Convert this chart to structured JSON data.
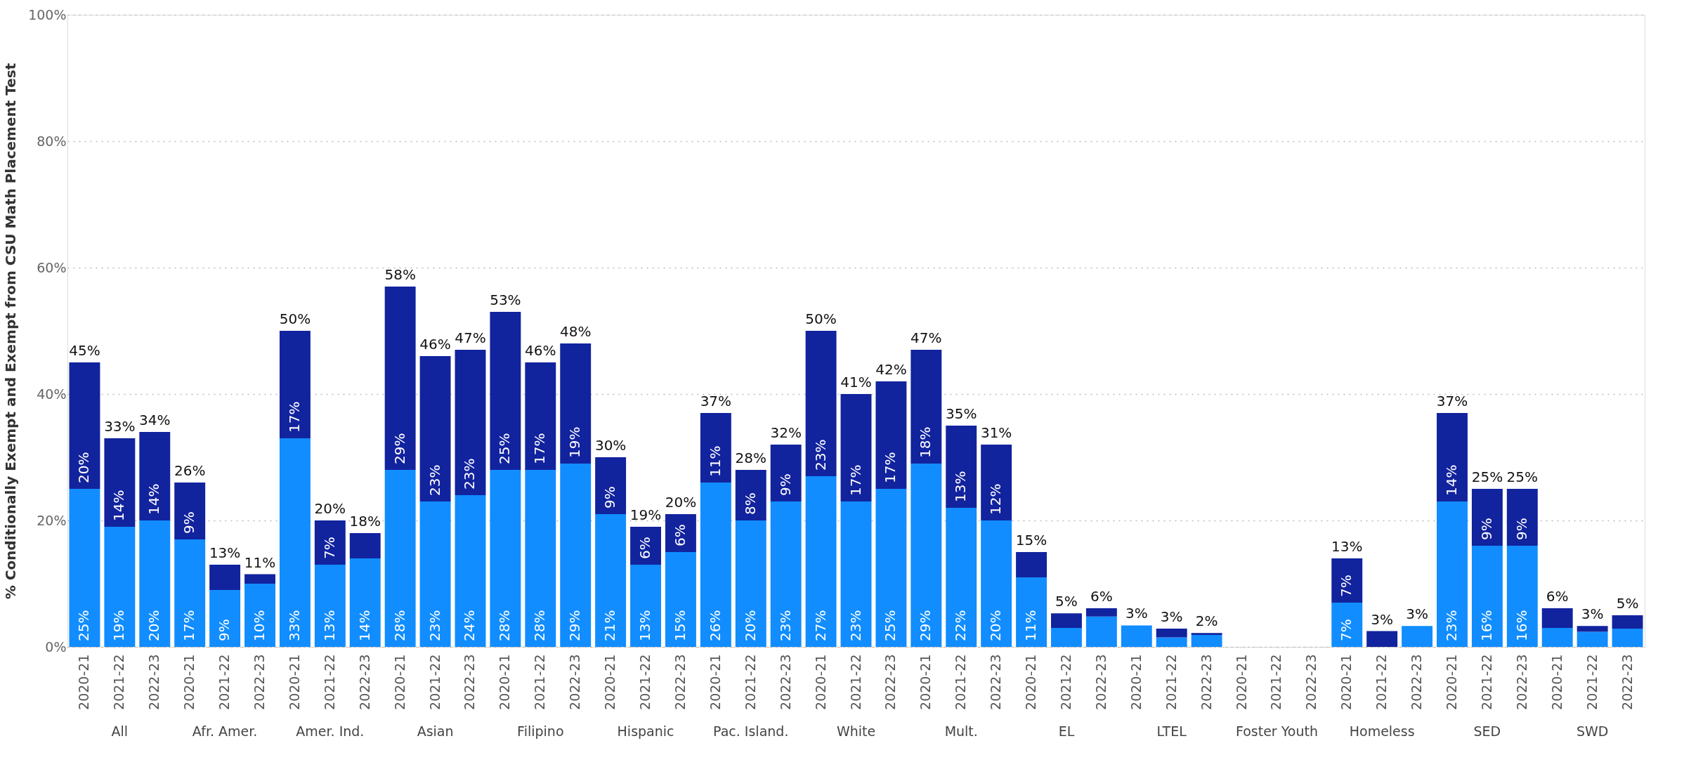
{
  "chart_data": {
    "type": "bar",
    "stacked": true,
    "ylabel": "% Conditionally Exempt and Exempt from CSU Math Placement Test",
    "categories": [
      "2020-21",
      "2021-22",
      "2022-23",
      "2020-21",
      "2021-22",
      "2022-23",
      "2020-21",
      "2021-22",
      "2022-23",
      "2020-21",
      "2021-22",
      "2022-23",
      "2020-21",
      "2021-22",
      "2022-23",
      "2020-21",
      "2021-22",
      "2022-23",
      "2020-21",
      "2021-22",
      "2022-23",
      "2020-21",
      "2021-22",
      "2022-23",
      "2020-21",
      "2021-22",
      "2022-23",
      "2020-21",
      "2021-22",
      "2022-23",
      "2020-21",
      "2021-22",
      "2022-23",
      "2020-21",
      "2021-22",
      "2022-23",
      "2020-21",
      "2021-22",
      "2022-23",
      "2020-21",
      "2021-22",
      "2022-23",
      "2020-21",
      "2021-22",
      "2022-23"
    ],
    "annotations": [
      "All",
      "Afr. Amer.",
      "Amer. Ind.",
      "Asian",
      "Filipino",
      "Hispanic",
      "Pac. Island.",
      "White",
      "Mult.",
      "EL",
      "LTEL",
      "Foster Youth",
      "Homeless",
      "SED",
      "SWD"
    ],
    "series": [
      {
        "color": "#118dff",
        "values": [
          25,
          19,
          20,
          17,
          9,
          10,
          33,
          13,
          14,
          28,
          23,
          24,
          28,
          28,
          29,
          21,
          13,
          15,
          26,
          20,
          23,
          27,
          23,
          25,
          29,
          22,
          20,
          11,
          3.0,
          4.8,
          3.4,
          1.5,
          1.9,
          null,
          null,
          null,
          7,
          null,
          3.3,
          23,
          16,
          16,
          3.0,
          2.4,
          2.9
        ],
        "value_labels": [
          "25%",
          "19%",
          "20%",
          "17%",
          "9%",
          "10%",
          "33%",
          "13%",
          "14%",
          "28%",
          "23%",
          "24%",
          "28%",
          "28%",
          "29%",
          "21%",
          "13%",
          "15%",
          "26%",
          "20%",
          "23%",
          "27%",
          "23%",
          "25%",
          "29%",
          "22%",
          "20%",
          "11%",
          null,
          null,
          null,
          null,
          null,
          null,
          null,
          null,
          "7%",
          null,
          null,
          "23%",
          "16%",
          "16%",
          null,
          null,
          null
        ]
      },
      {
        "color": "#12239e",
        "values": [
          20,
          14,
          14,
          9,
          4,
          1.5,
          17,
          7,
          4,
          29,
          23,
          23,
          25,
          17,
          19,
          9,
          6,
          6,
          11,
          8,
          9,
          23,
          17,
          17,
          18,
          13,
          12,
          4,
          2.3,
          1.3,
          null,
          1.4,
          0.3,
          null,
          null,
          null,
          7,
          2.5,
          null,
          14,
          9,
          9,
          3.1,
          0.9,
          2.1
        ],
        "value_labels": [
          "20%",
          "14%",
          "14%",
          "9%",
          null,
          null,
          "17%",
          "7%",
          null,
          "29%",
          "23%",
          "23%",
          "25%",
          "17%",
          "19%",
          "9%",
          "6%",
          "6%",
          "11%",
          "8%",
          "9%",
          "23%",
          "17%",
          "17%",
          "18%",
          "13%",
          "12%",
          null,
          null,
          null,
          null,
          null,
          null,
          null,
          null,
          null,
          "7%",
          null,
          null,
          "14%",
          "9%",
          "9%",
          null,
          null,
          null
        ]
      }
    ],
    "totals": [
      "45%",
      "33%",
      "34%",
      "26%",
      "13%",
      "11%",
      "50%",
      "20%",
      "18%",
      "58%",
      "46%",
      "47%",
      "53%",
      "46%",
      "48%",
      "30%",
      "19%",
      "20%",
      "37%",
      "28%",
      "32%",
      "50%",
      "41%",
      "42%",
      "47%",
      "35%",
      "31%",
      "15%",
      "5%",
      "6%",
      "3%",
      "3%",
      "2%",
      null,
      null,
      null,
      "13%",
      "3%",
      "3%",
      "37%",
      "25%",
      "25%",
      "6%",
      "3%",
      "5%"
    ],
    "ylim": [
      0,
      100
    ],
    "yticks": [
      {
        "value": 0,
        "label": "0%"
      },
      {
        "value": 20,
        "label": "20%"
      },
      {
        "value": 40,
        "label": "40%"
      },
      {
        "value": 60,
        "label": "60%"
      },
      {
        "value": 80,
        "label": "80%"
      },
      {
        "value": 100,
        "label": "100%"
      }
    ],
    "grid": "y"
  }
}
